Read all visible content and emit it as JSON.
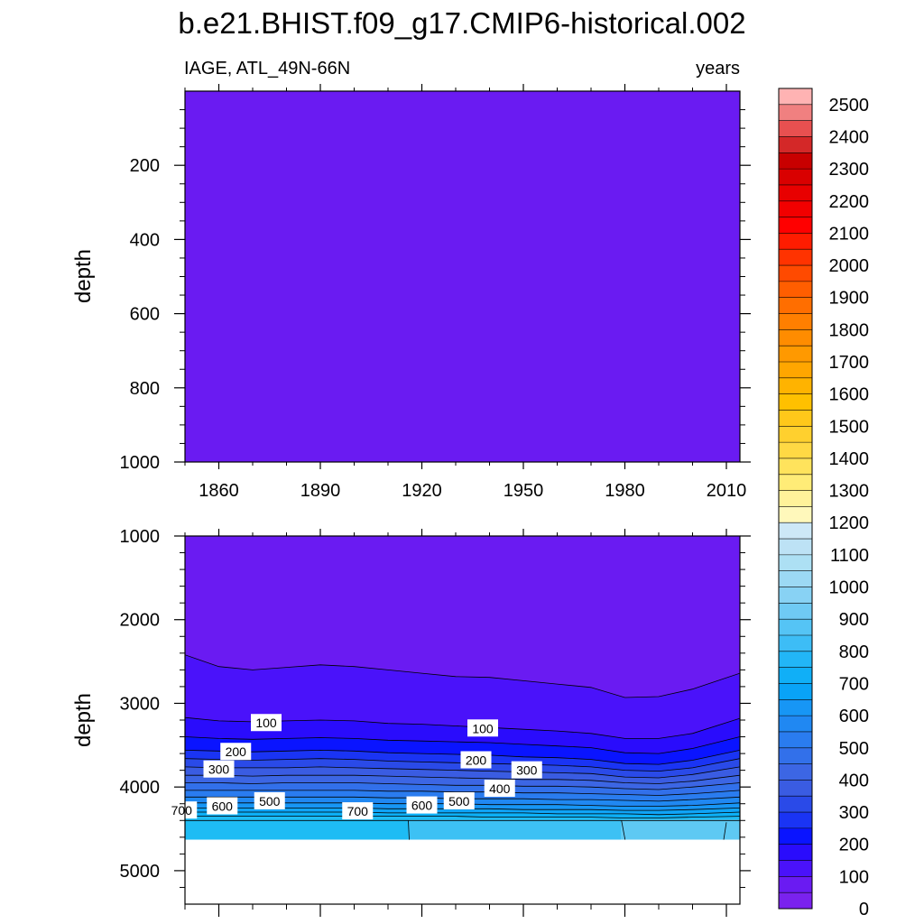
{
  "chart_data": [
    {
      "type": "heatmap",
      "panel": "upper",
      "title": "b.e21.BHIST.f09_g17.CMIP6-historical.002",
      "left_string": "IAGE, ATL_49N-66N",
      "right_string": "years",
      "ylabel": "depth",
      "xlim": [
        1850,
        2014
      ],
      "ylim": [
        1000,
        0
      ],
      "xticks": [
        1860,
        1890,
        1920,
        1950,
        1980,
        2010
      ],
      "xtick_labels": [
        "1860",
        "1890",
        "1920",
        "1950",
        "1980",
        "2010"
      ],
      "yticks": [
        200,
        400,
        600,
        800,
        1000
      ],
      "ytick_labels": [
        "200",
        "400",
        "600",
        "800",
        "1000"
      ],
      "field_value": 0,
      "fill_color": "#6a1bf2"
    },
    {
      "type": "heatmap",
      "panel": "lower",
      "ylabel": "depth",
      "xlim": [
        1850,
        2014
      ],
      "ylim": [
        5400,
        1000
      ],
      "xticks": [
        1860,
        1890,
        1920,
        1950,
        1980,
        2010
      ],
      "yticks": [
        1000,
        2000,
        3000,
        4000,
        5000
      ],
      "ytick_labels": [
        "1000",
        "2000",
        "3000",
        "4000",
        "5000"
      ],
      "ocean_bottom_depth": 4630,
      "contour_levels": [
        0,
        50,
        100,
        150,
        200,
        250,
        300,
        350,
        400,
        450,
        500,
        550,
        600,
        650,
        700
      ],
      "contour_x": [
        1850,
        1860,
        1870,
        1880,
        1890,
        1900,
        1910,
        1920,
        1930,
        1940,
        1950,
        1960,
        1970,
        1980,
        1990,
        2000,
        2014
      ],
      "contour_depths": [
        [
          2420,
          2560,
          2600,
          2570,
          2540,
          2560,
          2600,
          2640,
          2680,
          2690,
          2730,
          2770,
          2810,
          2930,
          2920,
          2830,
          2640
        ],
        [
          3170,
          3210,
          3220,
          3210,
          3200,
          3210,
          3240,
          3250,
          3270,
          3290,
          3310,
          3330,
          3360,
          3420,
          3420,
          3360,
          3180
        ],
        [
          3400,
          3420,
          3430,
          3420,
          3410,
          3420,
          3440,
          3450,
          3460,
          3470,
          3490,
          3510,
          3530,
          3590,
          3600,
          3540,
          3400
        ],
        [
          3560,
          3570,
          3580,
          3570,
          3560,
          3570,
          3590,
          3600,
          3610,
          3620,
          3640,
          3650,
          3670,
          3720,
          3730,
          3680,
          3560
        ],
        [
          3660,
          3670,
          3680,
          3670,
          3660,
          3670,
          3690,
          3700,
          3710,
          3720,
          3730,
          3740,
          3760,
          3800,
          3810,
          3770,
          3660
        ],
        [
          3760,
          3770,
          3770,
          3770,
          3760,
          3770,
          3780,
          3790,
          3800,
          3810,
          3820,
          3830,
          3840,
          3880,
          3890,
          3850,
          3760
        ],
        [
          3860,
          3860,
          3870,
          3860,
          3860,
          3860,
          3870,
          3880,
          3890,
          3900,
          3910,
          3910,
          3920,
          3950,
          3960,
          3930,
          3860
        ],
        [
          3950,
          3950,
          3960,
          3950,
          3950,
          3950,
          3960,
          3970,
          3980,
          3980,
          3990,
          3990,
          4000,
          4020,
          4030,
          4000,
          3950
        ],
        [
          4040,
          4040,
          4040,
          4040,
          4040,
          4040,
          4050,
          4050,
          4060,
          4060,
          4070,
          4070,
          4080,
          4090,
          4100,
          4080,
          4040
        ],
        [
          4120,
          4120,
          4120,
          4120,
          4120,
          4120,
          4130,
          4130,
          4140,
          4140,
          4140,
          4150,
          4150,
          4160,
          4170,
          4150,
          4120
        ],
        [
          4190,
          4190,
          4190,
          4190,
          4190,
          4190,
          4200,
          4200,
          4200,
          4210,
          4210,
          4210,
          4220,
          4230,
          4230,
          4220,
          4190
        ],
        [
          4250,
          4250,
          4250,
          4250,
          4250,
          4250,
          4260,
          4260,
          4260,
          4260,
          4270,
          4270,
          4270,
          4280,
          4280,
          4270,
          4250
        ],
        [
          4300,
          4300,
          4300,
          4300,
          4300,
          4300,
          4310,
          4310,
          4310,
          4310,
          4310,
          4320,
          4320,
          4320,
          4330,
          4320,
          4300
        ],
        [
          4350,
          4350,
          4350,
          4350,
          4350,
          4350,
          4350,
          4350,
          4350,
          4360,
          4360,
          4360,
          4360,
          4370,
          4370,
          4360,
          4350
        ],
        [
          4400,
          4400,
          4400,
          4400,
          4400,
          4400,
          4400,
          4400,
          4400,
          4400,
          4400,
          4400,
          4400,
          4400,
          4400,
          4400,
          4400
        ]
      ],
      "band_colors": [
        "#6a1bf2",
        "#4a12fa",
        "#2a0cfc",
        "#0a14ff",
        "#1a34f4",
        "#2a4ae8",
        "#3a5ce2",
        "#3c66e4",
        "#3270ea",
        "#2a7cef",
        "#2088f2",
        "#1796f5",
        "#10a4f7",
        "#0cb0f7",
        "#1ebcf4",
        "#3dc1f4"
      ],
      "bottom_regions": [
        {
          "x_start": 1850,
          "x_end": 1916,
          "color": "#1ebcf4"
        },
        {
          "x_start": 1916,
          "x_end": 1979,
          "color": "#3dc1f4"
        },
        {
          "x_start": 1979,
          "x_end": 2014,
          "color": "#5ec9f3"
        }
      ],
      "contour_labels": [
        {
          "text": "100",
          "x": 1874,
          "depth": 3235
        },
        {
          "text": "100",
          "x": 1938,
          "depth": 3300
        },
        {
          "text": "200",
          "x": 1865,
          "depth": 3580
        },
        {
          "text": "200",
          "x": 1936,
          "depth": 3680
        },
        {
          "text": "300",
          "x": 1860,
          "depth": 3790
        },
        {
          "text": "300",
          "x": 1951,
          "depth": 3800
        },
        {
          "text": "400",
          "x": 1943,
          "depth": 4020
        },
        {
          "text": "500",
          "x": 1875,
          "depth": 4170
        },
        {
          "text": "500",
          "x": 1931,
          "depth": 4170
        },
        {
          "text": "600",
          "x": 1861,
          "depth": 4230
        },
        {
          "text": "600",
          "x": 1920,
          "depth": 4220
        },
        {
          "text": "700",
          "x": 1849,
          "depth": 4280
        },
        {
          "text": "700",
          "x": 1901,
          "depth": 4290
        }
      ]
    }
  ],
  "colorbar": {
    "labels": [
      "2500",
      "2400",
      "2300",
      "2200",
      "2100",
      "2000",
      "1900",
      "1800",
      "1700",
      "1600",
      "1500",
      "1400",
      "1300",
      "1200",
      "1100",
      "1000",
      "900",
      "800",
      "700",
      "600",
      "500",
      "400",
      "300",
      "200",
      "100",
      "0"
    ],
    "colors": [
      "#ffb3b3",
      "#f08080",
      "#e85050",
      "#d42828",
      "#c80000",
      "#d90000",
      "#e80000",
      "#f20000",
      "#ff0000",
      "#ff1c00",
      "#ff3300",
      "#ff4a00",
      "#ff5e00",
      "#ff6e00",
      "#ff7f00",
      "#ff8c00",
      "#ff9900",
      "#ffa600",
      "#ffb300",
      "#ffc000",
      "#ffc81a",
      "#ffd02e",
      "#ffd944",
      "#ffe35c",
      "#ffec77",
      "#fff29a",
      "#fff8bb",
      "#cde8f7",
      "#bde2f5",
      "#ade0f4",
      "#9cd9f4",
      "#88d2f4",
      "#6fcaf4",
      "#55c4f5",
      "#3dbdf6",
      "#22b6f7",
      "#10aff7",
      "#09a3f7",
      "#1796f5",
      "#2088f2",
      "#2a7cef",
      "#3270ea",
      "#3c66e4",
      "#3a5ce2",
      "#2a4ae8",
      "#1a34f4",
      "#0a14ff",
      "#2a0cfc",
      "#4a12fa",
      "#6a1bf2",
      "#7a22ee"
    ]
  }
}
